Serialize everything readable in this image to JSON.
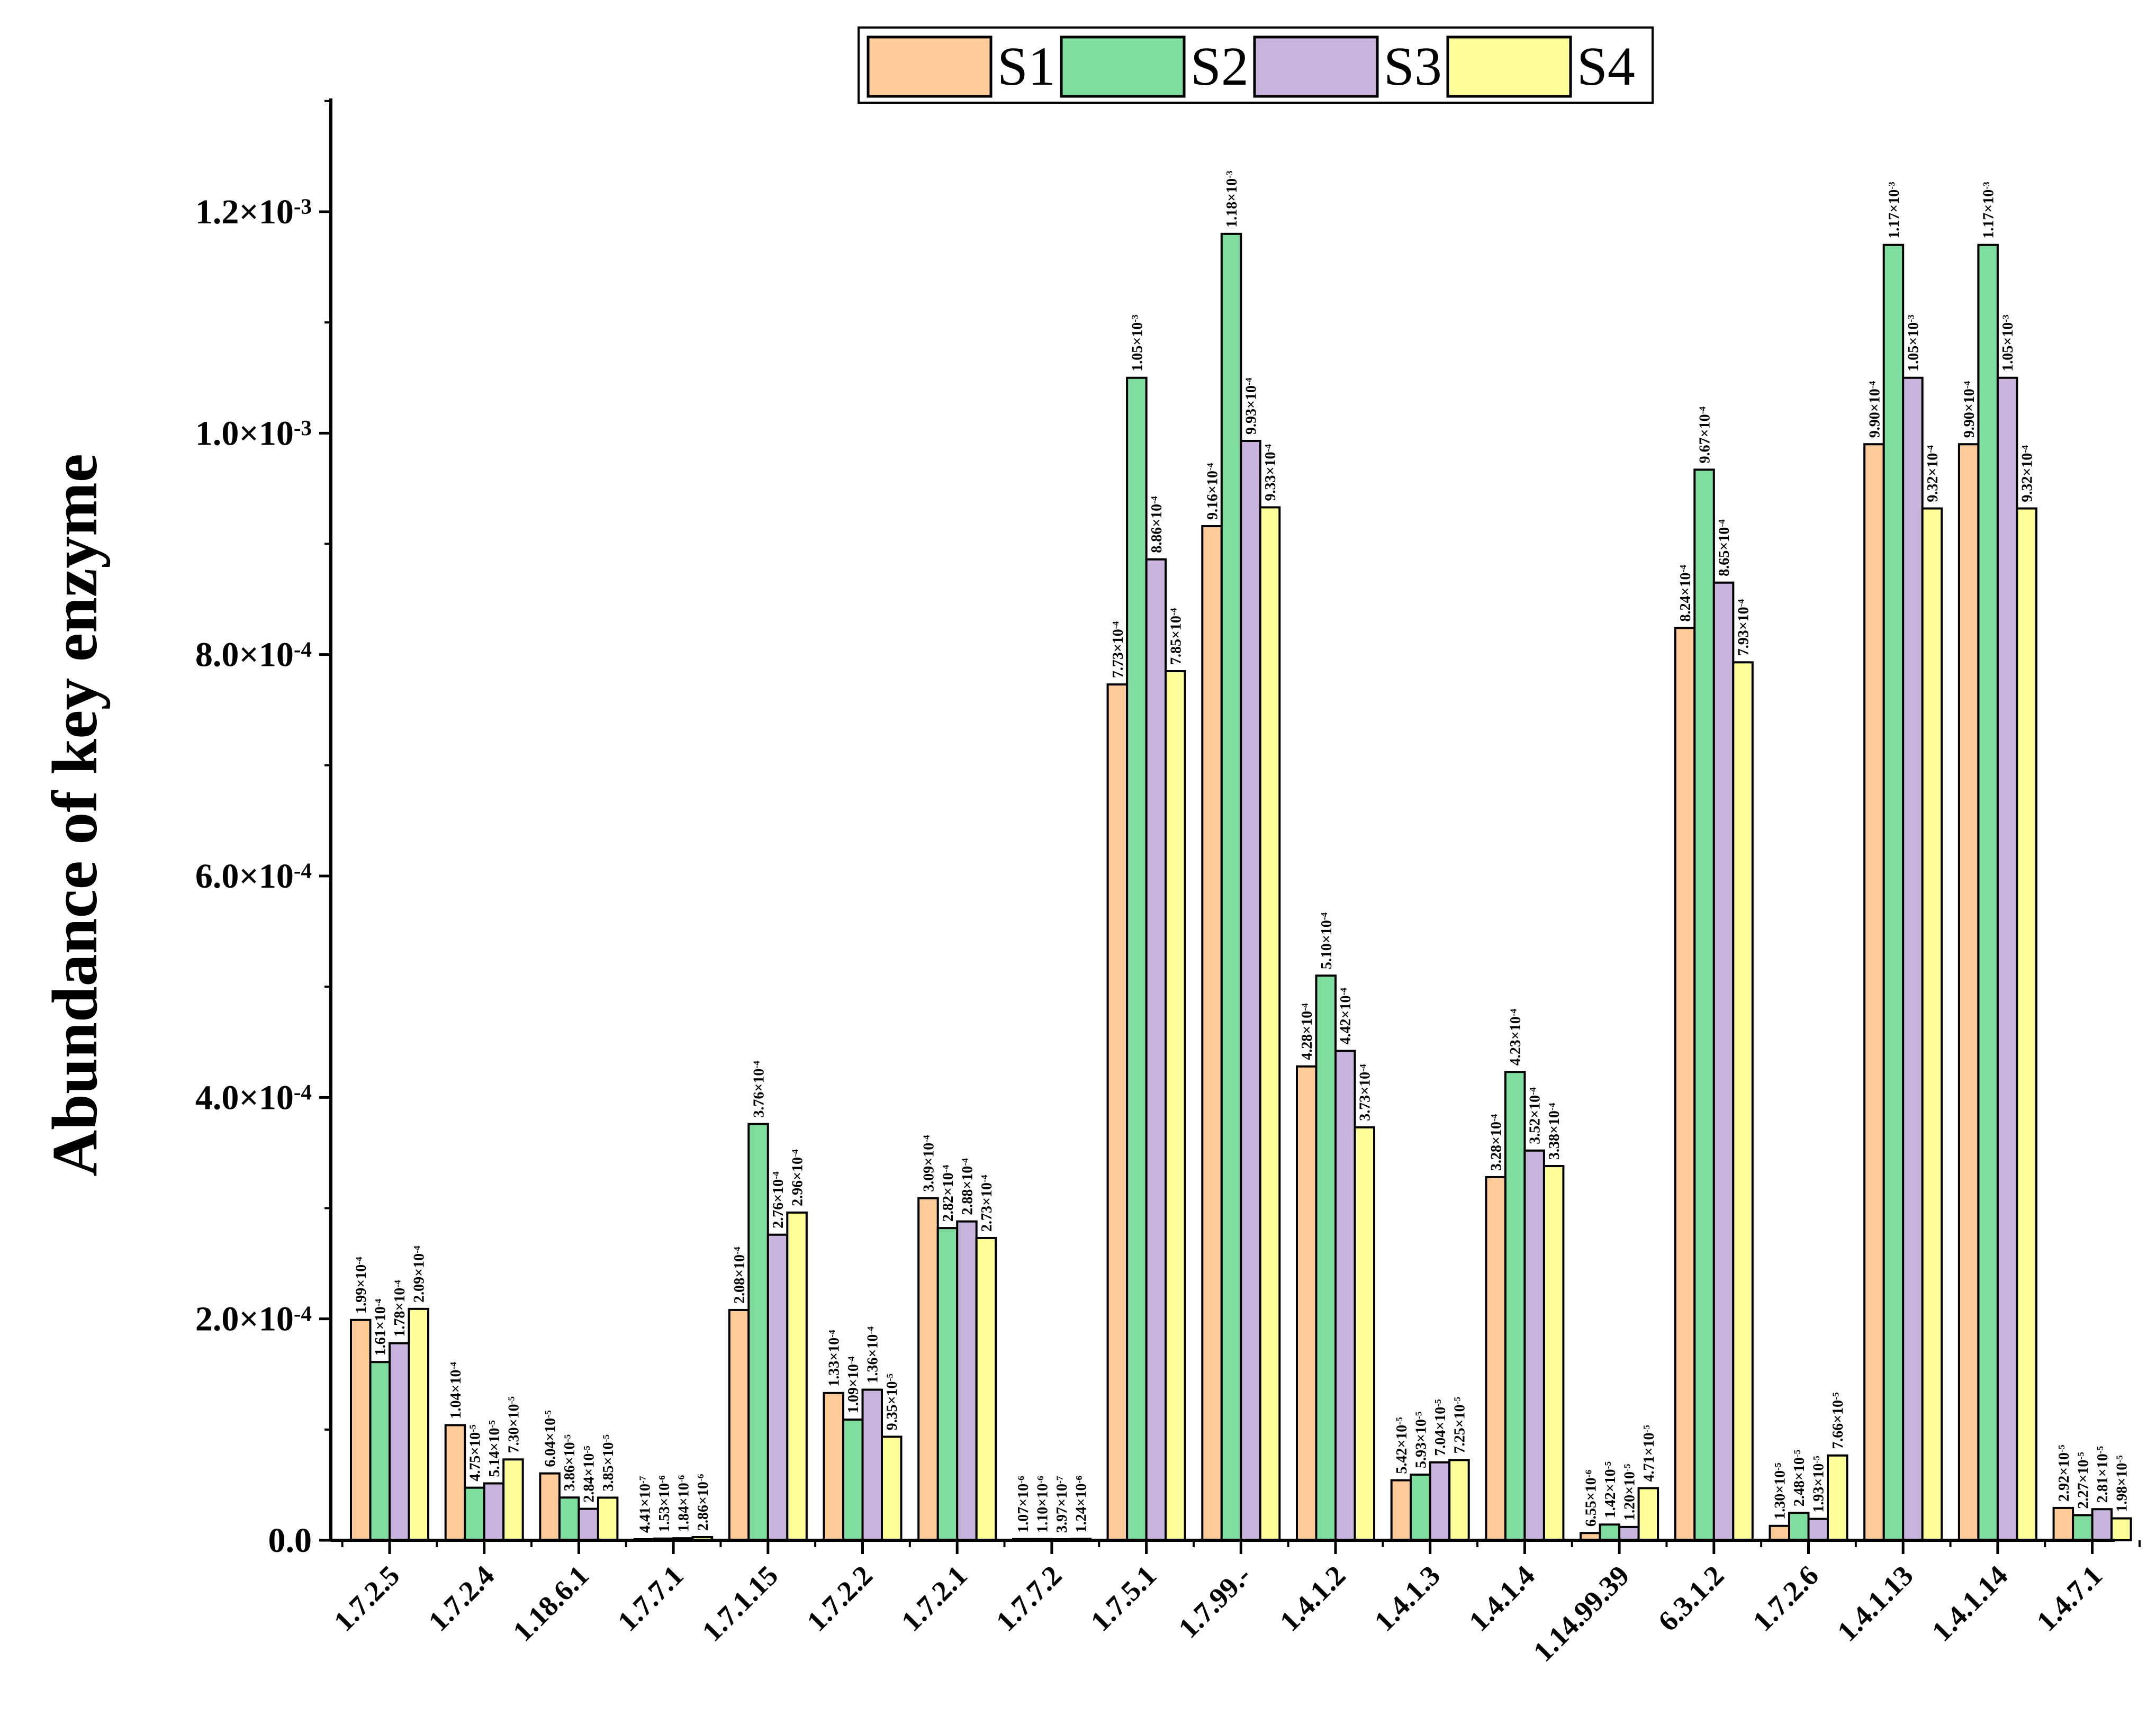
{
  "chart_data": {
    "type": "bar",
    "ylabel": "Abundance of key enzyme",
    "xlabel": "",
    "ylim": [
      0,
      0.0013
    ],
    "yticks": [
      {
        "value": 0,
        "label": "0.0",
        "exp": ""
      },
      {
        "value": 0.0002,
        "label": "2.0×10",
        "exp": "-4"
      },
      {
        "value": 0.0004,
        "label": "4.0×10",
        "exp": "-4"
      },
      {
        "value": 0.0006,
        "label": "6.0×10",
        "exp": "-4"
      },
      {
        "value": 0.0008,
        "label": "8.0×10",
        "exp": "-4"
      },
      {
        "value": 0.001,
        "label": "1.0×10",
        "exp": "-3"
      },
      {
        "value": 0.0012,
        "label": "1.2×10",
        "exp": "-3"
      }
    ],
    "categories": [
      "1.7.2.5",
      "1.7.2.4",
      "1.18.6.1",
      "1.7.7.1",
      "1.7.1.15",
      "1.7.2.2",
      "1.7.2.1",
      "1.7.7.2",
      "1.7.5.1",
      "1.7.99.-",
      "1.4.1.2",
      "1.4.1.3",
      "1.4.1.4",
      "1.14.99.39",
      "6.3.1.2",
      "1.7.2.6",
      "1.4.1.13",
      "1.4.1.14",
      "1.4.7.1"
    ],
    "colors": [
      "#FFCC99",
      "#80DDA0",
      "#C8B4DC",
      "#FFFF99"
    ],
    "edge_color": "#000000",
    "legend_position": "top-center",
    "series": [
      {
        "name": "S1",
        "values": [
          0.000199,
          0.000104,
          6.04e-05,
          4.41e-07,
          0.000208,
          0.000133,
          0.000309,
          1.07e-06,
          0.000773,
          0.000916,
          0.000428,
          5.42e-05,
          0.000328,
          6.55e-06,
          0.000824,
          1.3e-05,
          0.00099,
          0.00099,
          2.92e-05
        ],
        "labels": [
          [
            "1.99×10",
            "-4"
          ],
          [
            "1.04×10",
            "-4"
          ],
          [
            "6.04×10",
            "-5"
          ],
          [
            "4.41×10",
            "-7"
          ],
          [
            "2.08×10",
            "-4"
          ],
          [
            "1.33×10",
            "-4"
          ],
          [
            "3.09×10",
            "-4"
          ],
          [
            "1.07×10",
            "-6"
          ],
          [
            "7.73×10",
            "-4"
          ],
          [
            "9.16×10",
            "-4"
          ],
          [
            "4.28×10",
            "-4"
          ],
          [
            "5.42×10",
            "-5"
          ],
          [
            "3.28×10",
            "-4"
          ],
          [
            "6.55×10",
            "-6"
          ],
          [
            "8.24×10",
            "-4"
          ],
          [
            "1.30×10",
            "-5"
          ],
          [
            "9.90×10",
            "-4"
          ],
          [
            "9.90×10",
            "-4"
          ],
          [
            "2.92×10",
            "-5"
          ]
        ]
      },
      {
        "name": "S2",
        "values": [
          0.000161,
          4.75e-05,
          3.86e-05,
          1.53e-06,
          0.000376,
          0.000109,
          0.000282,
          1.1e-06,
          0.00105,
          0.00118,
          0.00051,
          5.93e-05,
          0.000423,
          1.42e-05,
          0.000967,
          2.48e-05,
          0.00117,
          0.00117,
          2.27e-05
        ],
        "labels": [
          [
            "1.61×10",
            "-4"
          ],
          [
            "4.75×10",
            "-5"
          ],
          [
            "3.86×10",
            "-5"
          ],
          [
            "1.53×10",
            "-6"
          ],
          [
            "3.76×10",
            "-4"
          ],
          [
            "1.09×10",
            "-4"
          ],
          [
            "2.82×10",
            "-4"
          ],
          [
            "1.10×10",
            "-6"
          ],
          [
            "1.05×10",
            "-3"
          ],
          [
            "1.18×10",
            "-3"
          ],
          [
            "5.10×10",
            "-4"
          ],
          [
            "5.93×10",
            "-5"
          ],
          [
            "4.23×10",
            "-4"
          ],
          [
            "1.42×10",
            "-5"
          ],
          [
            "9.67×10",
            "-4"
          ],
          [
            "2.48×10",
            "-5"
          ],
          [
            "1.17×10",
            "-3"
          ],
          [
            "1.17×10",
            "-3"
          ],
          [
            "2.27×10",
            "-5"
          ]
        ]
      },
      {
        "name": "S3",
        "values": [
          0.000178,
          5.14e-05,
          2.84e-05,
          1.84e-06,
          0.000276,
          0.000136,
          0.000288,
          3.97e-07,
          0.000886,
          0.000993,
          0.000442,
          7.04e-05,
          0.000352,
          1.2e-05,
          0.000865,
          1.93e-05,
          0.00105,
          0.00105,
          2.81e-05
        ],
        "labels": [
          [
            "1.78×10",
            "-4"
          ],
          [
            "5.14×10",
            "-5"
          ],
          [
            "2.84×10",
            "-5"
          ],
          [
            "1.84×10",
            "-6"
          ],
          [
            "2.76×10",
            "-4"
          ],
          [
            "1.36×10",
            "-4"
          ],
          [
            "2.88×10",
            "-4"
          ],
          [
            "3.97×10",
            "-7"
          ],
          [
            "8.86×10",
            "-4"
          ],
          [
            "9.93×10",
            "-4"
          ],
          [
            "4.42×10",
            "-4"
          ],
          [
            "7.04×10",
            "-5"
          ],
          [
            "3.52×10",
            "-4"
          ],
          [
            "1.20×10",
            "-5"
          ],
          [
            "8.65×10",
            "-4"
          ],
          [
            "1.93×10",
            "-5"
          ],
          [
            "1.05×10",
            "-3"
          ],
          [
            "1.05×10",
            "-3"
          ],
          [
            "2.81×10",
            "-5"
          ]
        ]
      },
      {
        "name": "S4",
        "values": [
          0.000209,
          7.3e-05,
          3.85e-05,
          2.86e-06,
          0.000296,
          9.35e-05,
          0.000273,
          1.24e-06,
          0.000785,
          0.000933,
          0.000373,
          7.25e-05,
          0.000338,
          4.71e-05,
          0.000793,
          7.66e-05,
          0.000932,
          0.000932,
          1.98e-05
        ],
        "labels": [
          [
            "2.09×10",
            "-4"
          ],
          [
            "7.30×10",
            "-5"
          ],
          [
            "3.85×10",
            "-5"
          ],
          [
            "2.86×10",
            "-6"
          ],
          [
            "2.96×10",
            "-4"
          ],
          [
            "9.35×10",
            "-5"
          ],
          [
            "2.73×10",
            "-4"
          ],
          [
            "1.24×10",
            "-6"
          ],
          [
            "7.85×10",
            "-4"
          ],
          [
            "9.33×10",
            "-4"
          ],
          [
            "3.73×10",
            "-4"
          ],
          [
            "7.25×10",
            "-5"
          ],
          [
            "3.38×10",
            "-4"
          ],
          [
            "4.71×10",
            "-5"
          ],
          [
            "7.93×10",
            "-4"
          ],
          [
            "7.66×10",
            "-5"
          ],
          [
            "9.32×10",
            "-4"
          ],
          [
            "9.32×10",
            "-4"
          ],
          [
            "1.98×10",
            "-5"
          ]
        ]
      }
    ]
  }
}
